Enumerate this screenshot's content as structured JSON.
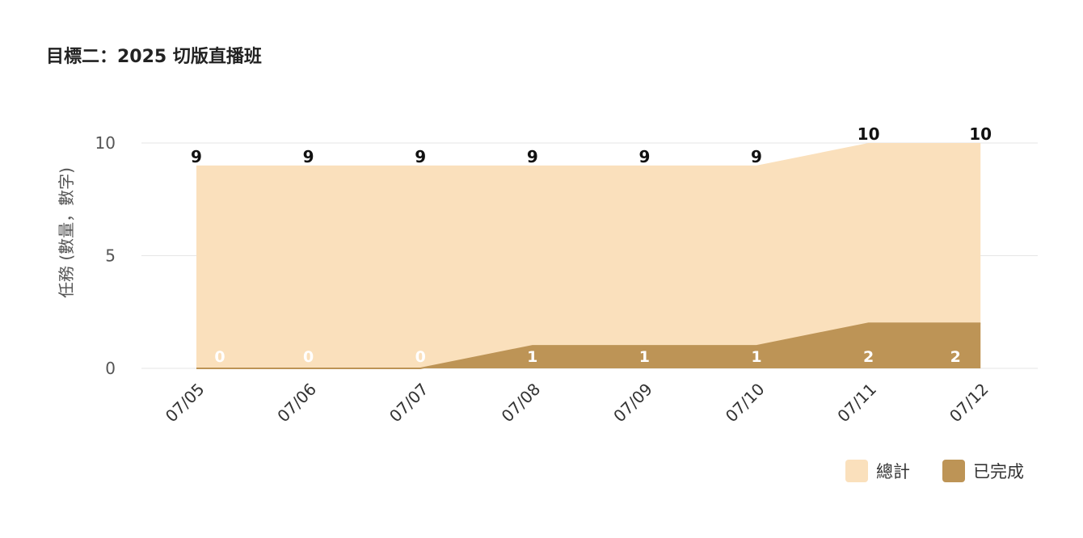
{
  "title": "目標二：2025 切版直播班",
  "colors": {
    "total": "#fae0bc",
    "done": "#bd9456",
    "grid": "#e6e6e6",
    "axis_text": "#555555",
    "label_dark": "#111111",
    "label_light": "#ffffff"
  },
  "legend": {
    "items": [
      {
        "label": "總計",
        "color": "#fae0bc"
      },
      {
        "label": "已完成",
        "color": "#bd9456"
      }
    ]
  },
  "chart_data": {
    "type": "area",
    "title": "目標二：2025 切版直播班",
    "xlabel": "",
    "ylabel": "任務 (數量，數字)",
    "categories": [
      "07/05",
      "07/06",
      "07/07",
      "07/08",
      "07/09",
      "07/10",
      "07/11",
      "07/12"
    ],
    "series": [
      {
        "name": "總計",
        "values": [
          9,
          9,
          9,
          9,
          9,
          9,
          10,
          10
        ],
        "color": "#fae0bc"
      },
      {
        "name": "已完成",
        "values": [
          0,
          0,
          0,
          1,
          1,
          1,
          2,
          2
        ],
        "color": "#bd9456"
      }
    ],
    "ylim": [
      0,
      10
    ],
    "yticks": [
      0,
      5,
      10
    ],
    "grid": true,
    "legend_position": "bottom-right",
    "data_labels": true
  }
}
